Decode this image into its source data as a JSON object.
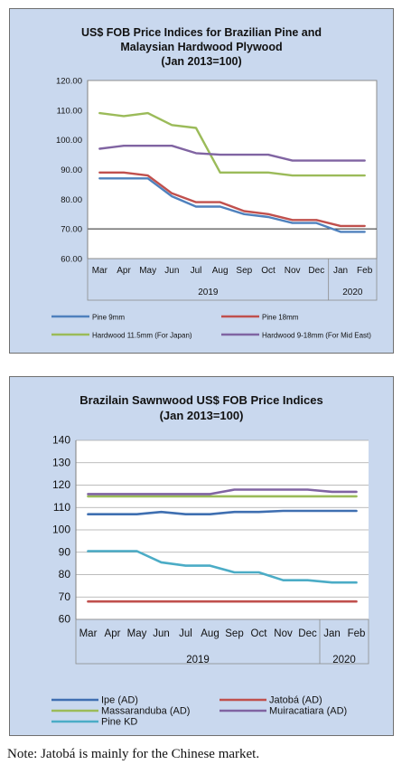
{
  "chart_data": [
    {
      "type": "line",
      "title_lines": [
        "US$ FOB Price Indices for Brazilian Pine and",
        "Malaysian Hardwood Plywood",
        "(Jan 2013=100)"
      ],
      "categories": [
        "Mar",
        "Apr",
        "May",
        "Jun",
        "Jul",
        "Aug",
        "Sep",
        "Oct",
        "Nov",
        "Dec",
        "Jan",
        "Feb"
      ],
      "year_groups": [
        {
          "label": "2019",
          "span": 10
        },
        {
          "label": "2020",
          "span": 2
        }
      ],
      "ylim": [
        60,
        120
      ],
      "yticks": [
        "60.00",
        "70.00",
        "80.00",
        "90.00",
        "100.00",
        "110.00",
        "120.00"
      ],
      "grid": false,
      "legend_position": "bottom",
      "series": [
        {
          "name": "Pine 9mm",
          "color": "#4f81bd",
          "values": [
            87,
            87,
            87,
            81,
            77.5,
            77.5,
            75,
            74,
            72,
            72,
            69,
            69
          ]
        },
        {
          "name": "Pine 18mm",
          "color": "#c0504d",
          "values": [
            89,
            89,
            88,
            82,
            79,
            79,
            76,
            75,
            73,
            73,
            71,
            71
          ]
        },
        {
          "name": "Hardwood 11.5mm (For Japan)",
          "color": "#9bbb59",
          "values": [
            109,
            108,
            109,
            105,
            104,
            89,
            89,
            89,
            88,
            88,
            88,
            88
          ]
        },
        {
          "name": "Hardwood 9-18mm (For Mid East)",
          "color": "#8064a2",
          "values": [
            97,
            98,
            98,
            98,
            95.5,
            95,
            95,
            95,
            93,
            93,
            93,
            93
          ]
        }
      ]
    },
    {
      "type": "line",
      "title_lines": [
        "Brazilain Sawnwood US$ FOB Price Indices",
        "(Jan 2013=100)"
      ],
      "categories": [
        "Mar",
        "Apr",
        "May",
        "Jun",
        "Jul",
        "Aug",
        "Sep",
        "Oct",
        "Nov",
        "Dec",
        "Jan",
        "Feb"
      ],
      "year_groups": [
        {
          "label": "2019",
          "span": 10
        },
        {
          "label": "2020",
          "span": 2
        }
      ],
      "ylim": [
        60,
        140
      ],
      "yticks": [
        "60",
        "70",
        "80",
        "90",
        "100",
        "110",
        "120",
        "130",
        "140"
      ],
      "grid": true,
      "legend_position": "bottom",
      "series": [
        {
          "name": "Ipe (AD)",
          "color": "#3f6fb1",
          "values": [
            107,
            107,
            107,
            108,
            107,
            107,
            108,
            108,
            108.5,
            108.5,
            108.5,
            108.5
          ]
        },
        {
          "name": "Jatobá (AD)",
          "color": "#c0504d",
          "values": [
            68,
            68,
            68,
            68,
            68,
            68,
            68,
            68,
            68,
            68,
            68,
            68
          ]
        },
        {
          "name": "Massaranduba (AD)",
          "color": "#9bbb59",
          "values": [
            115,
            115,
            115,
            115,
            115,
            115,
            115,
            115,
            115,
            115,
            115,
            115
          ]
        },
        {
          "name": "Muiracatiara (AD)",
          "color": "#8064a2",
          "values": [
            116,
            116,
            116,
            116,
            116,
            116,
            118,
            118,
            118,
            118,
            117,
            117
          ]
        },
        {
          "name": "Pine KD",
          "color": "#4bacc6",
          "values": [
            90.5,
            90.5,
            90.5,
            85.5,
            84,
            84,
            81,
            81,
            77.5,
            77.5,
            76.5,
            76.5
          ]
        }
      ]
    }
  ],
  "note": "Note: Jatobá is mainly for the Chinese market."
}
